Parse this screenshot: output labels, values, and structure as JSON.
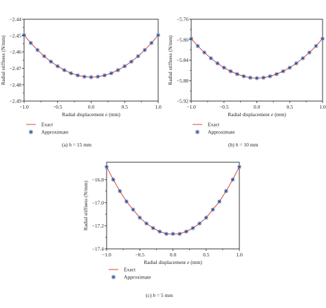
{
  "chart_data": [
    {
      "type": "line",
      "x": [
        -1.0,
        -0.9,
        -0.8,
        -0.7,
        -0.6,
        -0.5,
        -0.4,
        -0.3,
        -0.2,
        -0.1,
        0.0,
        0.1,
        0.2,
        0.3,
        0.4,
        0.5,
        0.6,
        0.7,
        0.8,
        0.9,
        1.0
      ],
      "series": [
        {
          "name": "Exact",
          "style": "line",
          "color": "#e0524a",
          "values": [
            -2.4497,
            -2.4545,
            -2.4588,
            -2.4626,
            -2.4659,
            -2.4687,
            -2.4711,
            -2.473,
            -2.4743,
            -2.4751,
            -2.4754,
            -2.4751,
            -2.4743,
            -2.473,
            -2.4711,
            -2.4687,
            -2.4659,
            -2.4626,
            -2.4588,
            -2.4545,
            -2.4497
          ]
        },
        {
          "name": "Approximate",
          "style": "marker",
          "color": "#2b4e9b",
          "values": [
            -2.4497,
            -2.4545,
            -2.4588,
            -2.4626,
            -2.4659,
            -2.4687,
            -2.4711,
            -2.473,
            -2.4743,
            -2.4751,
            -2.4754,
            -2.4751,
            -2.4743,
            -2.473,
            -2.4711,
            -2.4687,
            -2.4659,
            -2.4626,
            -2.4588,
            -2.4545,
            -2.4497
          ]
        }
      ],
      "xlabel_pre": "Radial displacement ",
      "xlabel_var": "e",
      "xlabel_post": " (mm)",
      "ylabel": "Radial stiffness (N/mm)",
      "xlim": [
        -1.0,
        1.0
      ],
      "ylim": [
        -2.49,
        -2.44
      ],
      "xticks": [
        -1.0,
        -0.5,
        0.0,
        0.5,
        1.0
      ],
      "xtick_labels": [
        "−1.0",
        "−0.5",
        "0.0",
        "0.5",
        "1.0"
      ],
      "yticks": [
        -2.49,
        -2.48,
        -2.47,
        -2.46,
        -2.45,
        -2.44
      ],
      "ytick_labels": [
        "−2.49",
        "−2.48",
        "−2.47",
        "−2.46",
        "−2.45",
        "−2.44"
      ],
      "grid": false,
      "legend_position": "below",
      "caption_prefix": "(a) ",
      "caption_var": "h",
      "caption_value": " = 15 mm"
    },
    {
      "type": "line",
      "x": [
        -1.0,
        -0.9,
        -0.8,
        -0.7,
        -0.6,
        -0.5,
        -0.4,
        -0.3,
        -0.2,
        -0.1,
        0.0,
        0.1,
        0.2,
        0.3,
        0.4,
        0.5,
        0.6,
        0.7,
        0.8,
        0.9,
        1.0
      ],
      "series": [
        {
          "name": "Exact",
          "style": "line",
          "color": "#e0524a",
          "values": [
            -5.798,
            -5.8123,
            -5.825,
            -5.8363,
            -5.8462,
            -5.8547,
            -5.8617,
            -5.8673,
            -5.8715,
            -5.8743,
            -5.8752,
            -5.8743,
            -5.8715,
            -5.8673,
            -5.8617,
            -5.8547,
            -5.8462,
            -5.8363,
            -5.825,
            -5.8123,
            -5.798
          ]
        },
        {
          "name": "Approximate",
          "style": "marker",
          "color": "#2b4e9b",
          "values": [
            -5.798,
            -5.8123,
            -5.825,
            -5.8363,
            -5.8462,
            -5.8547,
            -5.8617,
            -5.8673,
            -5.8715,
            -5.8743,
            -5.8752,
            -5.8743,
            -5.8715,
            -5.8673,
            -5.8617,
            -5.8547,
            -5.8462,
            -5.8363,
            -5.825,
            -5.8123,
            -5.798
          ]
        }
      ],
      "xlabel_pre": "Radial displacement ",
      "xlabel_var": "e",
      "xlabel_post": " (mm)",
      "ylabel": "Radial stiffness (N/mm)",
      "xlim": [
        -1.0,
        1.0
      ],
      "ylim": [
        -5.92,
        -5.76
      ],
      "xticks": [
        -1.0,
        -0.5,
        0.0,
        0.5,
        1.0
      ],
      "xtick_labels": [
        "−1.0",
        "−0.5",
        "0.0",
        "0.5",
        "1.0"
      ],
      "yticks": [
        -5.92,
        -5.88,
        -5.84,
        -5.8,
        -5.76
      ],
      "ytick_labels": [
        "−5.92",
        "−5.88",
        "−5.84",
        "−5.80",
        "−5.76"
      ],
      "grid": false,
      "legend_position": "below",
      "caption_prefix": "(b) ",
      "caption_var": "h",
      "caption_value": " = 10 mm"
    },
    {
      "type": "line",
      "x": [
        -1.0,
        -0.9,
        -0.8,
        -0.7,
        -0.6,
        -0.5,
        -0.4,
        -0.3,
        -0.2,
        -0.1,
        0.0,
        0.1,
        0.2,
        0.3,
        0.4,
        0.5,
        0.6,
        0.7,
        0.8,
        0.9,
        1.0
      ],
      "series": [
        {
          "name": "Exact",
          "style": "line",
          "color": "#e0524a",
          "values": [
            -16.69,
            -16.8,
            -16.9,
            -16.99,
            -17.06,
            -17.13,
            -17.18,
            -17.22,
            -17.25,
            -17.27,
            -17.27,
            -17.27,
            -17.25,
            -17.22,
            -17.18,
            -17.13,
            -17.06,
            -16.99,
            -16.9,
            -16.8,
            -16.69
          ]
        },
        {
          "name": "Approximate",
          "style": "marker",
          "color": "#2b4e9b",
          "values": [
            -16.69,
            -16.8,
            -16.9,
            -16.99,
            -17.06,
            -17.13,
            -17.18,
            -17.22,
            -17.25,
            -17.27,
            -17.27,
            -17.27,
            -17.25,
            -17.22,
            -17.18,
            -17.13,
            -17.06,
            -16.99,
            -16.9,
            -16.8,
            -16.69
          ]
        }
      ],
      "xlabel_pre": "Radial displacement ",
      "xlabel_var": "e",
      "xlabel_post": " (mm)",
      "ylabel": "Radial stiffness (N/mm)",
      "xlim": [
        -1.0,
        1.0
      ],
      "ylim": [
        -17.4,
        -16.65
      ],
      "xticks": [
        -1.0,
        -0.5,
        0.0,
        0.5,
        1.0
      ],
      "xtick_labels": [
        "−1.0",
        "−0.5",
        "0.0",
        "0.5",
        "1.0"
      ],
      "yticks": [
        -17.4,
        -17.2,
        -17.0,
        -16.8
      ],
      "ytick_labels": [
        "−17.4",
        "−17.2",
        "−17.0",
        "−16.8"
      ],
      "grid": false,
      "legend_position": "below",
      "caption_prefix": "(c) ",
      "caption_var": "h",
      "caption_value": " = 5 mm"
    }
  ]
}
